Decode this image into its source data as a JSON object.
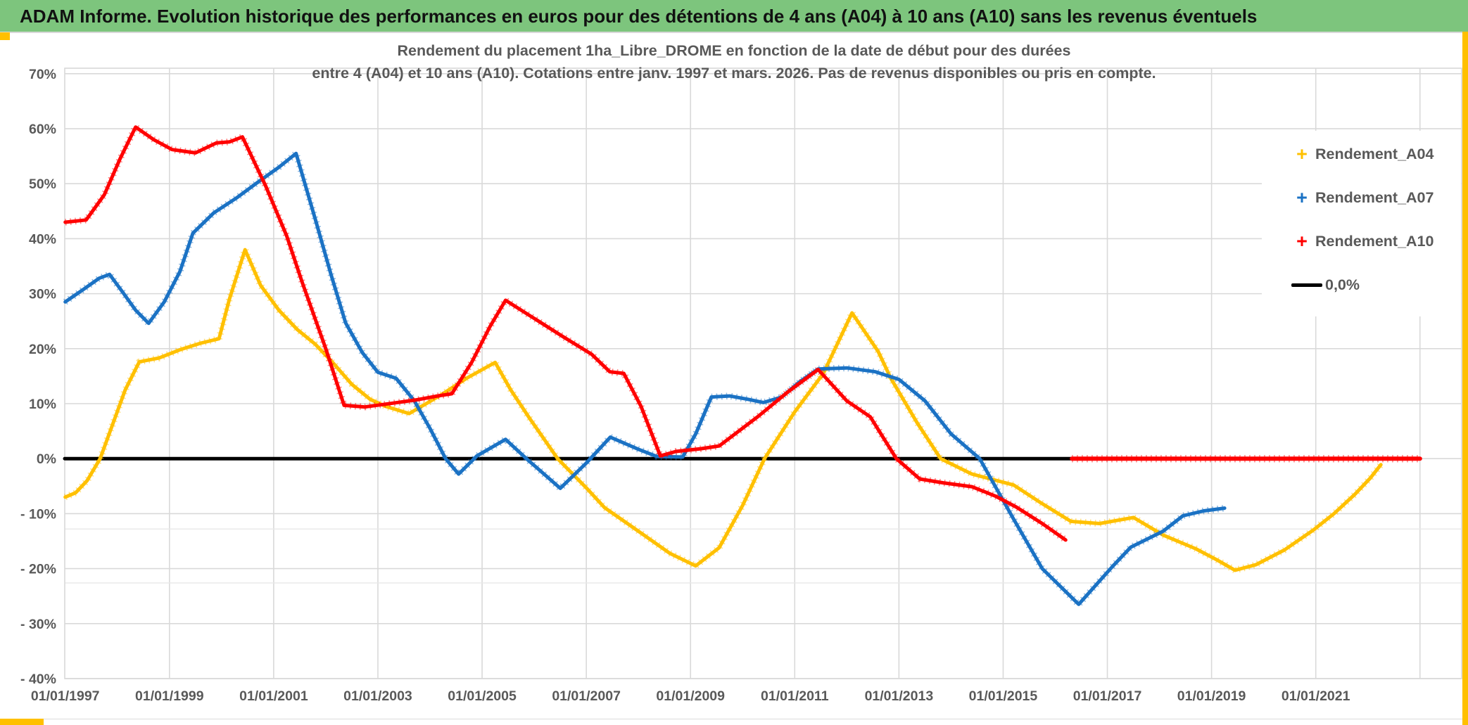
{
  "header": {
    "title": "ADAM Informe. Evolution historique des performances en euros pour des détentions de 4 ans (A04) à 10 ans (A10) sans les revenus éventuels"
  },
  "colors": {
    "header_bg": "#7DC57D",
    "accent_gold": "#FFC000",
    "grid": "#D9D9D9",
    "grid_faint": "#E8E8E8",
    "axis_text": "#595959",
    "title_text": "#595959",
    "series_a04": "#FFC000",
    "series_a07": "#1B72C4",
    "series_a10": "#FF0000",
    "zero_line": "#000000"
  },
  "chart_data": {
    "type": "line",
    "title_line1": "Rendement du placement 1ha_Libre_DROME en fonction de la date de début pour des durées",
    "title_line2": "entre 4 (A04) et 10 ans (A10). Cotations entre janv. 1997 et mars. 2026. Pas de revenus disponibles ou pris en compte.",
    "legend_position": "right",
    "grid": true,
    "axis": {
      "x_range": [
        1996.99,
        2023.8
      ],
      "y_range": [
        -40,
        71
      ],
      "x_tick_labels": [
        {
          "year": 1997,
          "label": "01/01/1997"
        },
        {
          "year": 1999,
          "label": "01/01/1999"
        },
        {
          "year": 2001,
          "label": "01/01/2001"
        },
        {
          "year": 2003,
          "label": "01/01/2003"
        },
        {
          "year": 2005,
          "label": "01/01/2005"
        },
        {
          "year": 2007,
          "label": "01/01/2007"
        },
        {
          "year": 2009,
          "label": "01/01/2009"
        },
        {
          "year": 2011,
          "label": "01/01/2011"
        },
        {
          "year": 2013,
          "label": "01/01/2013"
        },
        {
          "year": 2015,
          "label": "01/01/2015"
        },
        {
          "year": 2017,
          "label": "01/01/2017"
        },
        {
          "year": 2019,
          "label": "01/01/2019"
        },
        {
          "year": 2021,
          "label": "01/01/2021"
        }
      ],
      "x_gridline_years": [
        1999,
        2001,
        2003,
        2005,
        2007,
        2009,
        2011,
        2013,
        2015,
        2017,
        2019,
        2021,
        2023
      ],
      "y_ticks": [
        {
          "value": 70,
          "label": "70%"
        },
        {
          "value": 60,
          "label": "60%"
        },
        {
          "value": 50,
          "label": "50%"
        },
        {
          "value": 40,
          "label": "40%"
        },
        {
          "value": 30,
          "label": "30%"
        },
        {
          "value": 20,
          "label": "20%"
        },
        {
          "value": 10,
          "label": "10%"
        },
        {
          "value": 0,
          "label": "0%"
        },
        {
          "value": -10,
          "label": "- 10%"
        },
        {
          "value": -20,
          "label": "- 20%"
        },
        {
          "value": -30,
          "label": "- 30%"
        },
        {
          "value": -40,
          "label": "- 40%"
        }
      ],
      "extra_faint_gridlines_pct": [
        -12.8,
        -22.6
      ]
    },
    "legend": [
      {
        "label": "Rendement_A04",
        "marker": "+",
        "color": "#FFC000"
      },
      {
        "label": "Rendement_A07",
        "marker": "+",
        "color": "#1B72C4"
      },
      {
        "label": "Rendement_A10",
        "marker": "+",
        "color": "#FF0000"
      },
      {
        "label": "0,0%",
        "marker": "line",
        "color": "#000000"
      }
    ],
    "series": [
      {
        "name": "zero-baseline",
        "color": "#000000",
        "width": 5,
        "textured": false,
        "in_legend": true,
        "points": [
          [
            1996.99,
            0
          ],
          [
            2023.0,
            0
          ]
        ]
      },
      {
        "name": "Rendement_A04",
        "color": "#FFC000",
        "width": 5,
        "textured": true,
        "in_legend": true,
        "points": [
          [
            1997.0,
            -7.0
          ],
          [
            1997.2,
            -6.2
          ],
          [
            1997.42,
            -4.0
          ],
          [
            1997.67,
            0.0
          ],
          [
            1997.9,
            6.0
          ],
          [
            1998.15,
            12.5
          ],
          [
            1998.42,
            17.6
          ],
          [
            1998.8,
            18.3
          ],
          [
            1999.2,
            19.8
          ],
          [
            1999.6,
            21.0
          ],
          [
            1999.95,
            21.8
          ],
          [
            2000.15,
            29.0
          ],
          [
            2000.45,
            38.0
          ],
          [
            2000.75,
            31.5
          ],
          [
            2001.1,
            27.0
          ],
          [
            2001.45,
            23.5
          ],
          [
            2001.8,
            20.8
          ],
          [
            2002.15,
            17.3
          ],
          [
            2002.5,
            13.5
          ],
          [
            2002.85,
            10.8
          ],
          [
            2003.15,
            9.5
          ],
          [
            2003.6,
            8.2
          ],
          [
            2004.0,
            10.4
          ],
          [
            2004.25,
            11.8
          ],
          [
            2004.7,
            14.6
          ],
          [
            2005.25,
            17.5
          ],
          [
            2005.55,
            12.5
          ],
          [
            2005.9,
            7.5
          ],
          [
            2006.45,
            0.0
          ],
          [
            2007.0,
            -5.3
          ],
          [
            2007.35,
            -8.9
          ],
          [
            2008.0,
            -13.2
          ],
          [
            2008.6,
            -17.2
          ],
          [
            2009.1,
            -19.5
          ],
          [
            2009.55,
            -16.2
          ],
          [
            2010.0,
            -8.5
          ],
          [
            2010.42,
            0.0
          ],
          [
            2011.0,
            8.5
          ],
          [
            2011.55,
            15.5
          ],
          [
            2012.1,
            26.5
          ],
          [
            2012.6,
            19.5
          ],
          [
            2012.85,
            14.5
          ],
          [
            2013.35,
            6.5
          ],
          [
            2013.8,
            0.0
          ],
          [
            2014.4,
            -2.8
          ],
          [
            2015.2,
            -4.8
          ],
          [
            2015.75,
            -8.2
          ],
          [
            2016.3,
            -11.4
          ],
          [
            2016.85,
            -11.8
          ],
          [
            2017.5,
            -10.7
          ],
          [
            2018.07,
            -13.9
          ],
          [
            2018.7,
            -16.4
          ],
          [
            2019.1,
            -18.4
          ],
          [
            2019.45,
            -20.3
          ],
          [
            2019.85,
            -19.3
          ],
          [
            2020.4,
            -16.6
          ],
          [
            2020.95,
            -13.0
          ],
          [
            2021.35,
            -10.0
          ],
          [
            2021.75,
            -6.5
          ],
          [
            2022.05,
            -3.5
          ],
          [
            2022.25,
            -1.1
          ]
        ]
      },
      {
        "name": "Rendement_A07",
        "color": "#1B72C4",
        "width": 5,
        "textured": true,
        "in_legend": true,
        "points": [
          [
            1997.0,
            28.5
          ],
          [
            1997.35,
            30.8
          ],
          [
            1997.65,
            32.8
          ],
          [
            1997.85,
            33.5
          ],
          [
            1998.1,
            30.3
          ],
          [
            1998.35,
            27.0
          ],
          [
            1998.6,
            24.6
          ],
          [
            1998.9,
            28.5
          ],
          [
            1999.2,
            34.0
          ],
          [
            1999.45,
            41.0
          ],
          [
            1999.85,
            44.7
          ],
          [
            2000.3,
            47.5
          ],
          [
            2000.7,
            50.3
          ],
          [
            2001.1,
            53.0
          ],
          [
            2001.43,
            55.5
          ],
          [
            2001.8,
            43.5
          ],
          [
            2002.1,
            33.5
          ],
          [
            2002.38,
            24.7
          ],
          [
            2002.7,
            19.3
          ],
          [
            2003.0,
            15.7
          ],
          [
            2003.35,
            14.6
          ],
          [
            2003.7,
            10.5
          ],
          [
            2004.0,
            5.5
          ],
          [
            2004.3,
            0.0
          ],
          [
            2004.55,
            -2.8
          ],
          [
            2004.9,
            0.5
          ],
          [
            2005.45,
            3.5
          ],
          [
            2005.85,
            0.0
          ],
          [
            2006.5,
            -5.4
          ],
          [
            2007.0,
            -0.8
          ],
          [
            2007.46,
            3.9
          ],
          [
            2008.0,
            1.7
          ],
          [
            2008.35,
            0.4
          ],
          [
            2008.85,
            0.3
          ],
          [
            2009.1,
            4.5
          ],
          [
            2009.4,
            11.2
          ],
          [
            2009.75,
            11.4
          ],
          [
            2010.1,
            10.8
          ],
          [
            2010.4,
            10.2
          ],
          [
            2010.75,
            11.2
          ],
          [
            2011.1,
            14.0
          ],
          [
            2011.45,
            16.3
          ],
          [
            2012.0,
            16.5
          ],
          [
            2012.55,
            15.8
          ],
          [
            2013.0,
            14.4
          ],
          [
            2013.5,
            10.5
          ],
          [
            2014.0,
            4.5
          ],
          [
            2014.55,
            0.0
          ],
          [
            2015.2,
            -11.0
          ],
          [
            2015.75,
            -20.0
          ],
          [
            2016.45,
            -26.5
          ],
          [
            2017.1,
            -19.6
          ],
          [
            2017.45,
            -16.1
          ],
          [
            2018.07,
            -13.2
          ],
          [
            2018.45,
            -10.4
          ],
          [
            2018.85,
            -9.5
          ],
          [
            2019.25,
            -9.0
          ]
        ]
      },
      {
        "name": "Rendement_A10",
        "color": "#FF0000",
        "width": 5,
        "textured": true,
        "in_legend": true,
        "points": [
          [
            1997.0,
            43.0
          ],
          [
            1997.4,
            43.4
          ],
          [
            1997.75,
            48.0
          ],
          [
            1998.05,
            54.5
          ],
          [
            1998.35,
            60.3
          ],
          [
            1998.7,
            58.0
          ],
          [
            1999.05,
            56.2
          ],
          [
            1999.5,
            55.6
          ],
          [
            1999.9,
            57.4
          ],
          [
            2000.15,
            57.6
          ],
          [
            2000.4,
            58.5
          ],
          [
            2000.85,
            49.5
          ],
          [
            2001.25,
            40.5
          ],
          [
            2001.55,
            32.0
          ],
          [
            2002.0,
            20.0
          ],
          [
            2002.35,
            9.7
          ],
          [
            2002.75,
            9.4
          ],
          [
            2003.3,
            10.1
          ],
          [
            2003.75,
            10.7
          ],
          [
            2004.15,
            11.4
          ],
          [
            2004.42,
            11.8
          ],
          [
            2004.8,
            17.5
          ],
          [
            2005.15,
            24.0
          ],
          [
            2005.45,
            28.8
          ],
          [
            2006.0,
            25.5
          ],
          [
            2006.55,
            22.2
          ],
          [
            2007.1,
            19.0
          ],
          [
            2007.45,
            15.8
          ],
          [
            2007.72,
            15.5
          ],
          [
            2008.05,
            9.5
          ],
          [
            2008.42,
            0.5
          ],
          [
            2008.72,
            1.3
          ],
          [
            2009.2,
            1.8
          ],
          [
            2009.55,
            2.3
          ],
          [
            2010.3,
            7.7
          ],
          [
            2010.85,
            12.0
          ],
          [
            2011.45,
            16.2
          ],
          [
            2012.0,
            10.5
          ],
          [
            2012.45,
            7.6
          ],
          [
            2012.95,
            0.0
          ],
          [
            2013.4,
            -3.7
          ],
          [
            2013.85,
            -4.4
          ],
          [
            2014.4,
            -5.1
          ],
          [
            2014.85,
            -6.8
          ],
          [
            2015.25,
            -8.8
          ],
          [
            2015.75,
            -11.8
          ],
          [
            2016.2,
            -14.8
          ]
        ]
      },
      {
        "name": "Rendement_A10-flat-zero",
        "color": "#FF0000",
        "width": 6,
        "textured": true,
        "in_legend": false,
        "points": [
          [
            2016.32,
            0
          ],
          [
            2023.0,
            0
          ]
        ]
      }
    ]
  }
}
